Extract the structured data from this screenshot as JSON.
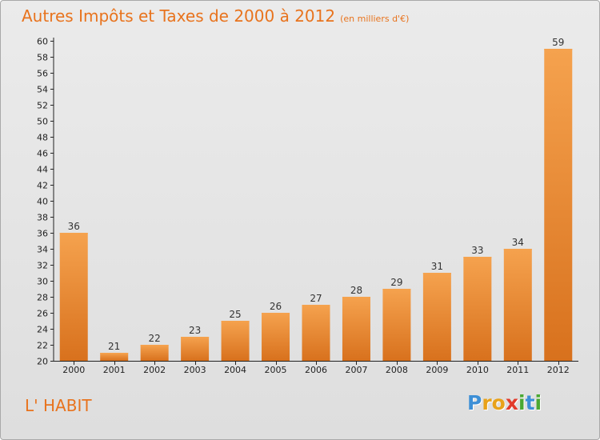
{
  "header": {
    "title": "Autres Impôts et Taxes de 2000 à 2012",
    "subtitle": "(en milliers d'€)"
  },
  "footer": {
    "place": "L' HABIT",
    "logo_text": [
      "P",
      "r",
      "o",
      "x",
      "i",
      "t",
      "i"
    ],
    "logo_colors": [
      "#3d8fd6",
      "#e8a21a",
      "#e8a21a",
      "#e23b2b",
      "#4aa832",
      "#3d8fd6",
      "#4aa832"
    ]
  },
  "colors": {
    "bar_light": "#f5a24e",
    "bar_dark": "#d8711d",
    "accent": "#e8731d",
    "axis": "#222222",
    "grid": "#ffffff"
  },
  "chart_data": {
    "type": "bar",
    "categories": [
      "2000",
      "2001",
      "2002",
      "2003",
      "2004",
      "2005",
      "2006",
      "2007",
      "2008",
      "2009",
      "2010",
      "2011",
      "2012"
    ],
    "values": [
      36,
      21,
      22,
      23,
      25,
      26,
      27,
      28,
      29,
      31,
      33,
      34,
      59
    ],
    "title": "Autres Impôts et Taxes de 2000 à 2012",
    "ylim": [
      20,
      60
    ],
    "yticks": [
      20,
      22,
      24,
      26,
      28,
      30,
      32,
      34,
      36,
      38,
      40,
      42,
      44,
      46,
      48,
      50,
      52,
      54,
      56,
      58,
      60
    ],
    "grid": false,
    "data_labels": true
  }
}
